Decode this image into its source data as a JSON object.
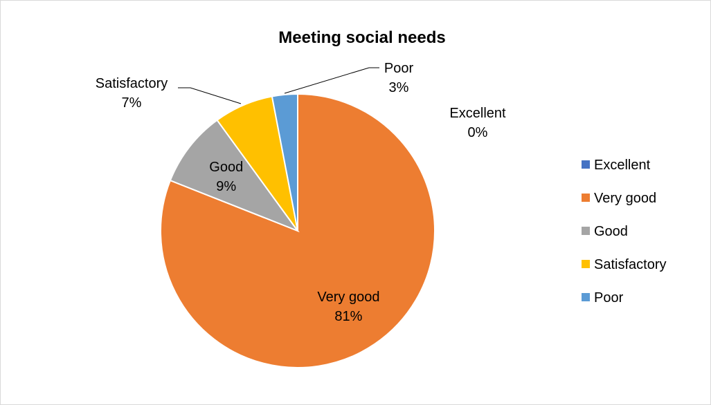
{
  "chart_data": {
    "type": "pie",
    "title": "Meeting social needs",
    "slices": [
      {
        "label": "Excellent",
        "value": 0,
        "percent_label": "0%",
        "color": "#4472C4"
      },
      {
        "label": "Very good",
        "value": 81,
        "percent_label": "81%",
        "color": "#ED7D31"
      },
      {
        "label": "Good",
        "value": 9,
        "percent_label": "9%",
        "color": "#A5A5A5"
      },
      {
        "label": "Satisfactory",
        "value": 7,
        "percent_label": "7%",
        "color": "#FFC000"
      },
      {
        "label": "Poor",
        "value": 3,
        "percent_label": "3%",
        "color": "#5B9BD5"
      }
    ],
    "legend": {
      "placement": "right",
      "entries": [
        "Excellent",
        "Very good",
        "Good",
        "Satisfactory",
        "Poor"
      ]
    }
  }
}
